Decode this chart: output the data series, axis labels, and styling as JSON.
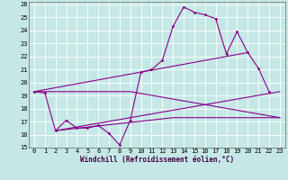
{
  "xlabel": "Windchill (Refroidissement éolien,°C)",
  "background_color": "#c5e8e6",
  "grid_color": "#b0d8d5",
  "line_color": "#880088",
  "xlim": [
    -0.5,
    23.5
  ],
  "ylim": [
    15,
    26.2
  ],
  "yticks": [
    15,
    16,
    17,
    18,
    19,
    20,
    21,
    22,
    23,
    24,
    25,
    26
  ],
  "xticks": [
    0,
    1,
    2,
    3,
    4,
    5,
    6,
    7,
    8,
    9,
    10,
    11,
    12,
    13,
    14,
    15,
    16,
    17,
    18,
    19,
    20,
    21,
    22,
    23
  ],
  "series1_x": [
    0,
    1,
    2,
    3,
    4,
    5,
    6,
    7,
    8,
    9,
    10,
    11,
    12,
    13,
    14,
    15,
    16,
    17,
    18,
    19,
    20,
    21,
    22
  ],
  "series1_y": [
    19.3,
    19.2,
    16.3,
    17.1,
    16.5,
    16.5,
    16.7,
    16.1,
    15.2,
    17.1,
    20.8,
    21.0,
    21.7,
    24.3,
    25.8,
    25.4,
    25.2,
    24.9,
    22.2,
    23.9,
    22.3,
    21.1,
    19.3
  ],
  "series2_x": [
    0,
    9,
    23
  ],
  "series2_y": [
    19.3,
    19.3,
    17.3
  ],
  "series3_x": [
    2,
    13,
    23
  ],
  "series3_y": [
    16.3,
    17.3,
    17.3
  ],
  "trend1_x": [
    0,
    20
  ],
  "trend1_y": [
    19.3,
    22.3
  ],
  "trend2_x": [
    2,
    23
  ],
  "trend2_y": [
    16.3,
    19.3
  ]
}
